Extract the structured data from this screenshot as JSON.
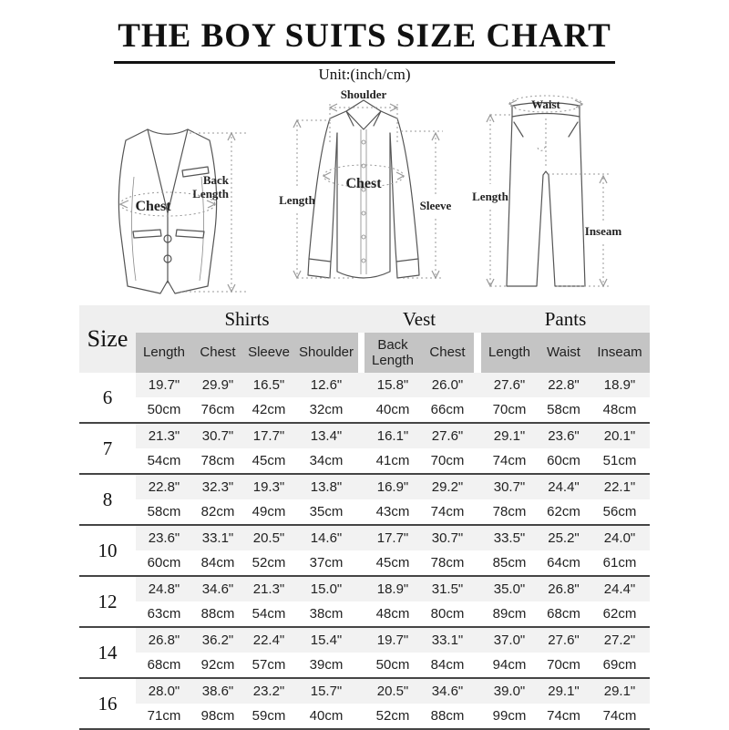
{
  "title": "THE BOY SUITS SIZE CHART",
  "subtitle": "Unit:(inch/cm)",
  "diagrams": {
    "vest": {
      "back_length_line1": "Back",
      "back_length_line2": "Length",
      "chest": "Chest"
    },
    "shirt": {
      "shoulder": "Shoulder",
      "length": "Length",
      "chest": "Chest",
      "sleeve": "Sleeve"
    },
    "pants": {
      "waist": "Waist",
      "length": "Length",
      "inseam": "Inseam"
    }
  },
  "table": {
    "size_header": "Size",
    "groups": [
      {
        "label": "Shirts",
        "columns": [
          "Length",
          "Chest",
          "Sleeve",
          "Shoulder"
        ]
      },
      {
        "label": "Vest",
        "columns": [
          "Back Length",
          "Chest"
        ]
      },
      {
        "label": "Pants",
        "columns": [
          "Length",
          "Waist",
          "Inseam"
        ]
      }
    ],
    "rows": [
      {
        "size": "6",
        "inch": [
          "19.7\"",
          "29.9\"",
          "16.5\"",
          "12.6\"",
          "15.8\"",
          "26.0\"",
          "27.6\"",
          "22.8\"",
          "18.9\""
        ],
        "cm": [
          "50cm",
          "76cm",
          "42cm",
          "32cm",
          "40cm",
          "66cm",
          "70cm",
          "58cm",
          "48cm"
        ]
      },
      {
        "size": "7",
        "inch": [
          "21.3\"",
          "30.7\"",
          "17.7\"",
          "13.4\"",
          "16.1\"",
          "27.6\"",
          "29.1\"",
          "23.6\"",
          "20.1\""
        ],
        "cm": [
          "54cm",
          "78cm",
          "45cm",
          "34cm",
          "41cm",
          "70cm",
          "74cm",
          "60cm",
          "51cm"
        ]
      },
      {
        "size": "8",
        "inch": [
          "22.8\"",
          "32.3\"",
          "19.3\"",
          "13.8\"",
          "16.9\"",
          "29.2\"",
          "30.7\"",
          "24.4\"",
          "22.1\""
        ],
        "cm": [
          "58cm",
          "82cm",
          "49cm",
          "35cm",
          "43cm",
          "74cm",
          "78cm",
          "62cm",
          "56cm"
        ]
      },
      {
        "size": "10",
        "inch": [
          "23.6\"",
          "33.1\"",
          "20.5\"",
          "14.6\"",
          "17.7\"",
          "30.7\"",
          "33.5\"",
          "25.2\"",
          "24.0\""
        ],
        "cm": [
          "60cm",
          "84cm",
          "52cm",
          "37cm",
          "45cm",
          "78cm",
          "85cm",
          "64cm",
          "61cm"
        ]
      },
      {
        "size": "12",
        "inch": [
          "24.8\"",
          "34.6\"",
          "21.3\"",
          "15.0\"",
          "18.9\"",
          "31.5\"",
          "35.0\"",
          "26.8\"",
          "24.4\""
        ],
        "cm": [
          "63cm",
          "88cm",
          "54cm",
          "38cm",
          "48cm",
          "80cm",
          "89cm",
          "68cm",
          "62cm"
        ]
      },
      {
        "size": "14",
        "inch": [
          "26.8\"",
          "36.2\"",
          "22.4\"",
          "15.4\"",
          "19.7\"",
          "33.1\"",
          "37.0\"",
          "27.6\"",
          "27.2\""
        ],
        "cm": [
          "68cm",
          "92cm",
          "57cm",
          "39cm",
          "50cm",
          "84cm",
          "94cm",
          "70cm",
          "69cm"
        ]
      },
      {
        "size": "16",
        "inch": [
          "28.0\"",
          "38.6\"",
          "23.2\"",
          "15.7\"",
          "20.5\"",
          "34.6\"",
          "39.0\"",
          "29.1\"",
          "29.1\""
        ],
        "cm": [
          "71cm",
          "98cm",
          "59cm",
          "40cm",
          "52cm",
          "88cm",
          "99cm",
          "74cm",
          "74cm"
        ]
      }
    ]
  },
  "colors": {
    "header_band": "#efefef",
    "subheader_block": "#c4c4c4",
    "inch_stripe": "#f2f2f2",
    "separator": "#454545",
    "text": "#1f1f1f"
  }
}
